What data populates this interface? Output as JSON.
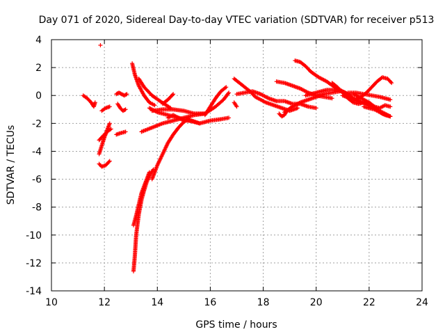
{
  "chart_data": {
    "type": "scatter",
    "title": "Day 071 of 2020, Sidereal Day-to-day VTEC variation (SDTVAR) for receiver p513",
    "xlabel": "GPS time / hours",
    "ylabel": "SDTVAR / TECUs",
    "xlim": [
      10,
      24
    ],
    "ylim": [
      -14,
      4
    ],
    "xticks": [
      "10",
      "12",
      "14",
      "16",
      "18",
      "20",
      "22",
      "24"
    ],
    "yticks": [
      "4",
      "2",
      "0",
      "-2",
      "-4",
      "-6",
      "-8",
      "-10",
      "-12",
      "-14"
    ],
    "grid": true,
    "marker": "+",
    "color": "#ff0000",
    "series": [
      {
        "name": "s1",
        "x": [
          11.2,
          11.35,
          11.5,
          11.6,
          11.65
        ],
        "y": [
          0,
          -0.2,
          -0.5,
          -0.8,
          -0.5
        ]
      },
      {
        "name": "s2",
        "x": [
          11.85
        ],
        "y": [
          3.6
        ]
      },
      {
        "name": "s3",
        "x": [
          11.8,
          11.9,
          12.05,
          12.2
        ],
        "y": [
          -4.9,
          -5.1,
          -5.0,
          -4.7
        ]
      },
      {
        "name": "s4",
        "x": [
          11.8,
          11.9,
          12.0,
          12.1,
          12.2
        ],
        "y": [
          -4.2,
          -3.6,
          -3.0,
          -2.5,
          -2.0
        ]
      },
      {
        "name": "s5",
        "x": [
          11.8,
          11.95,
          12.1,
          12.25
        ],
        "y": [
          -3.2,
          -2.9,
          -2.6,
          -2.4
        ]
      },
      {
        "name": "s6",
        "x": [
          11.9,
          12.05,
          12.2
        ],
        "y": [
          -1.1,
          -0.9,
          -0.8
        ]
      },
      {
        "name": "s7",
        "x": [
          12.45,
          12.6,
          12.8
        ],
        "y": [
          -2.8,
          -2.7,
          -2.6
        ]
      },
      {
        "name": "s8",
        "x": [
          12.5,
          12.6,
          12.7,
          12.8
        ],
        "y": [
          -0.6,
          -0.9,
          -1.1,
          -1.0
        ]
      },
      {
        "name": "s9",
        "x": [
          12.45,
          12.55,
          12.65,
          12.75,
          12.85
        ],
        "y": [
          0.1,
          0.2,
          0.1,
          0.0,
          0.1
        ]
      },
      {
        "name": "s10",
        "x": [
          13.05,
          13.15,
          13.3,
          13.5,
          13.7,
          13.9
        ],
        "y": [
          2.3,
          1.5,
          0.7,
          0.0,
          -0.5,
          -0.7
        ]
      },
      {
        "name": "s11",
        "x": [
          13.3,
          13.5,
          13.8,
          14.1,
          14.5
        ],
        "y": [
          1.2,
          0.6,
          0.0,
          -0.4,
          -0.9
        ]
      },
      {
        "name": "s12",
        "x": [
          13.1,
          13.15,
          13.2,
          13.3,
          13.4,
          13.5,
          13.6,
          13.75,
          13.85
        ],
        "y": [
          -12.6,
          -11.5,
          -10.0,
          -8.5,
          -7.5,
          -6.8,
          -6.2,
          -5.6,
          -5.3
        ]
      },
      {
        "name": "s13",
        "x": [
          13.1,
          13.2,
          13.3,
          13.4,
          13.5,
          13.6,
          13.7
        ],
        "y": [
          -9.3,
          -8.6,
          -7.8,
          -7.0,
          -6.5,
          -6.0,
          -5.5
        ]
      },
      {
        "name": "s14",
        "x": [
          13.8,
          14.0,
          14.2,
          14.4,
          14.6,
          14.8,
          15.0,
          15.2
        ],
        "y": [
          -6.0,
          -5.0,
          -4.2,
          -3.4,
          -2.8,
          -2.3,
          -1.9,
          -1.6
        ]
      },
      {
        "name": "s15",
        "x": [
          13.4,
          13.8,
          14.2,
          14.6,
          15.0,
          15.4,
          15.8
        ],
        "y": [
          -2.6,
          -2.3,
          -2.0,
          -1.8,
          -1.6,
          -1.4,
          -1.3
        ]
      },
      {
        "name": "s16",
        "x": [
          13.8,
          14.2,
          14.6,
          15.0,
          15.4,
          15.8,
          16.2,
          16.5,
          16.7
        ],
        "y": [
          -1.1,
          -1.0,
          -1.0,
          -1.1,
          -1.3,
          -1.3,
          -0.8,
          -0.3,
          0.2
        ]
      },
      {
        "name": "s17",
        "x": [
          13.7,
          14.0,
          14.4,
          14.8,
          15.2,
          15.6
        ],
        "y": [
          -0.9,
          -1.2,
          -1.4,
          -1.6,
          -1.8,
          -2.0
        ]
      },
      {
        "name": "s18",
        "x": [
          14.4,
          14.6,
          14.8,
          15.0,
          15.3,
          15.6,
          16.0,
          16.4,
          16.7
        ],
        "y": [
          -1.6,
          -1.4,
          -1.6,
          -1.8,
          -1.8,
          -2.0,
          -1.8,
          -1.7,
          -1.6
        ]
      },
      {
        "name": "s19",
        "x": [
          14.2,
          14.4,
          14.6
        ],
        "y": [
          -0.6,
          -0.3,
          0.1
        ]
      },
      {
        "name": "s20",
        "x": [
          15.8,
          16.0,
          16.2,
          16.4,
          16.6
        ],
        "y": [
          -1.4,
          -0.8,
          -0.2,
          0.3,
          0.6
        ]
      },
      {
        "name": "s21",
        "x": [
          16.9,
          17.0
        ],
        "y": [
          -0.5,
          -0.8
        ]
      },
      {
        "name": "s22",
        "x": [
          16.9,
          17.1,
          17.3,
          17.5,
          17.7,
          17.9,
          18.1,
          18.4,
          18.7,
          19.0,
          19.3
        ],
        "y": [
          1.2,
          0.9,
          0.6,
          0.3,
          -0.1,
          -0.3,
          -0.5,
          -0.7,
          -0.9,
          -1.1,
          -0.9
        ]
      },
      {
        "name": "s23",
        "x": [
          17.0,
          17.3,
          17.6,
          17.9,
          18.2,
          18.5,
          18.8,
          19.1,
          19.4,
          19.7,
          20.0
        ],
        "y": [
          0.1,
          0.2,
          0.3,
          0.1,
          -0.2,
          -0.4,
          -0.4,
          -0.6,
          -0.6,
          -0.8,
          -0.9
        ]
      },
      {
        "name": "s24",
        "x": [
          18.6,
          18.7,
          18.8,
          18.9
        ],
        "y": [
          -1.3,
          -1.5,
          -1.4,
          -1.1
        ]
      },
      {
        "name": "s25",
        "x": [
          18.5,
          18.8,
          19.1,
          19.4,
          19.7,
          20.0,
          20.3,
          20.6
        ],
        "y": [
          1.0,
          0.9,
          0.7,
          0.5,
          0.2,
          0.0,
          -0.1,
          -0.2
        ]
      },
      {
        "name": "s26",
        "x": [
          18.8,
          19.1,
          19.4,
          19.7,
          20.0,
          20.3,
          20.6,
          20.9
        ],
        "y": [
          -1.2,
          -0.8,
          -0.5,
          -0.3,
          -0.1,
          0.1,
          0.2,
          0.3
        ]
      },
      {
        "name": "s27",
        "x": [
          19.2,
          19.4,
          19.6,
          19.8,
          20.1,
          20.4,
          20.7,
          21.0,
          21.3
        ],
        "y": [
          2.5,
          2.4,
          2.1,
          1.7,
          1.3,
          1.0,
          0.6,
          0.3,
          0.0
        ]
      },
      {
        "name": "s28",
        "x": [
          19.6,
          20.0,
          20.4,
          20.8,
          21.1,
          21.4,
          21.7
        ],
        "y": [
          0.0,
          0.2,
          0.4,
          0.4,
          0.2,
          -0.2,
          -0.5
        ]
      },
      {
        "name": "s29",
        "x": [
          20.6,
          20.8,
          21.0,
          21.2,
          21.4,
          21.6,
          21.8,
          22.0,
          22.2,
          22.4,
          22.6,
          22.8
        ],
        "y": [
          0.9,
          0.6,
          0.2,
          -0.2,
          -0.5,
          -0.6,
          -0.5,
          -0.6,
          -0.8,
          -1.1,
          -1.3,
          -1.5
        ]
      },
      {
        "name": "s30",
        "x": [
          21.0,
          21.3,
          21.6,
          21.9,
          22.2,
          22.5,
          22.8
        ],
        "y": [
          0.0,
          -0.2,
          -0.4,
          -0.6,
          -0.9,
          -1.3,
          -1.5
        ]
      },
      {
        "name": "s31",
        "x": [
          21.4,
          21.6,
          21.8,
          22.0,
          22.2,
          22.4,
          22.6,
          22.8
        ],
        "y": [
          0.1,
          -0.1,
          -0.3,
          -0.5,
          -0.8,
          -0.9,
          -0.7,
          -0.8
        ]
      },
      {
        "name": "s32",
        "x": [
          21.2,
          21.5,
          21.8,
          22.1,
          22.4,
          22.6,
          22.8
        ],
        "y": [
          0.2,
          0.2,
          0.1,
          0.0,
          -0.1,
          -0.2,
          -0.3
        ]
      },
      {
        "name": "s33",
        "x": [
          21.5,
          21.7,
          21.9,
          22.1,
          22.3,
          22.5,
          22.7,
          22.85
        ],
        "y": [
          -0.3,
          -0.1,
          0.2,
          0.6,
          1.0,
          1.3,
          1.2,
          0.9
        ]
      },
      {
        "name": "s34",
        "x": [
          21.8,
          22.0,
          22.2,
          22.4,
          22.6,
          22.8
        ],
        "y": [
          -0.8,
          -0.9,
          -1.0,
          -1.2,
          -1.4,
          -1.5
        ]
      }
    ]
  }
}
